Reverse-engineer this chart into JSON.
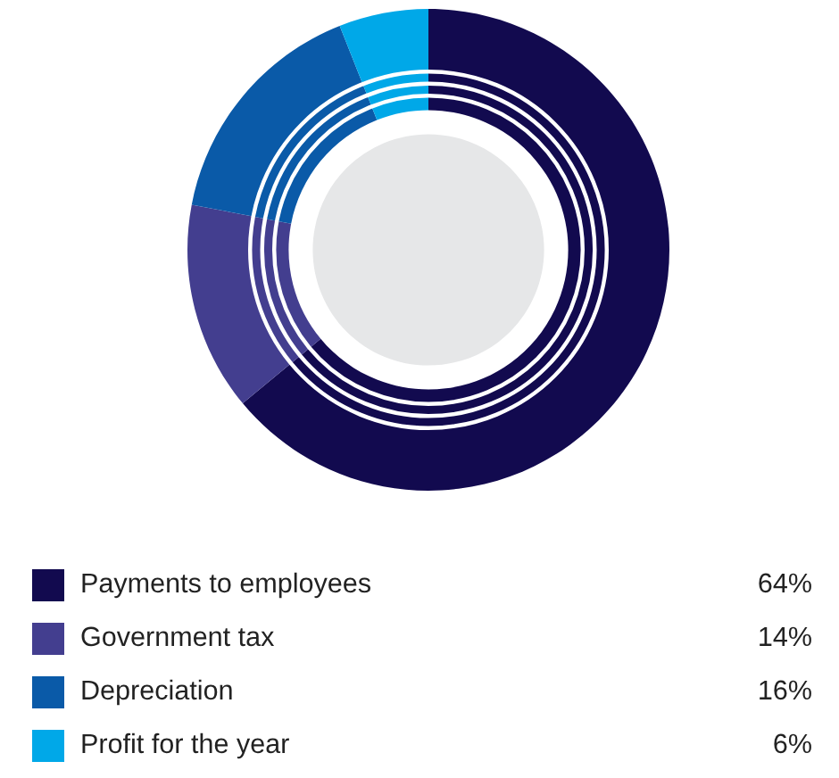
{
  "chart_data": {
    "type": "donut",
    "categories": [
      "Payments to employees",
      "Government tax",
      "Depreciation",
      "Profit for the year"
    ],
    "values": [
      64,
      14,
      16,
      6
    ],
    "colors": [
      "#120a4f",
      "#433e8f",
      "#0a5aa8",
      "#00a8e8"
    ],
    "value_labels": [
      "64%",
      "14%",
      "16%",
      "6%"
    ],
    "legend": "bottom"
  }
}
